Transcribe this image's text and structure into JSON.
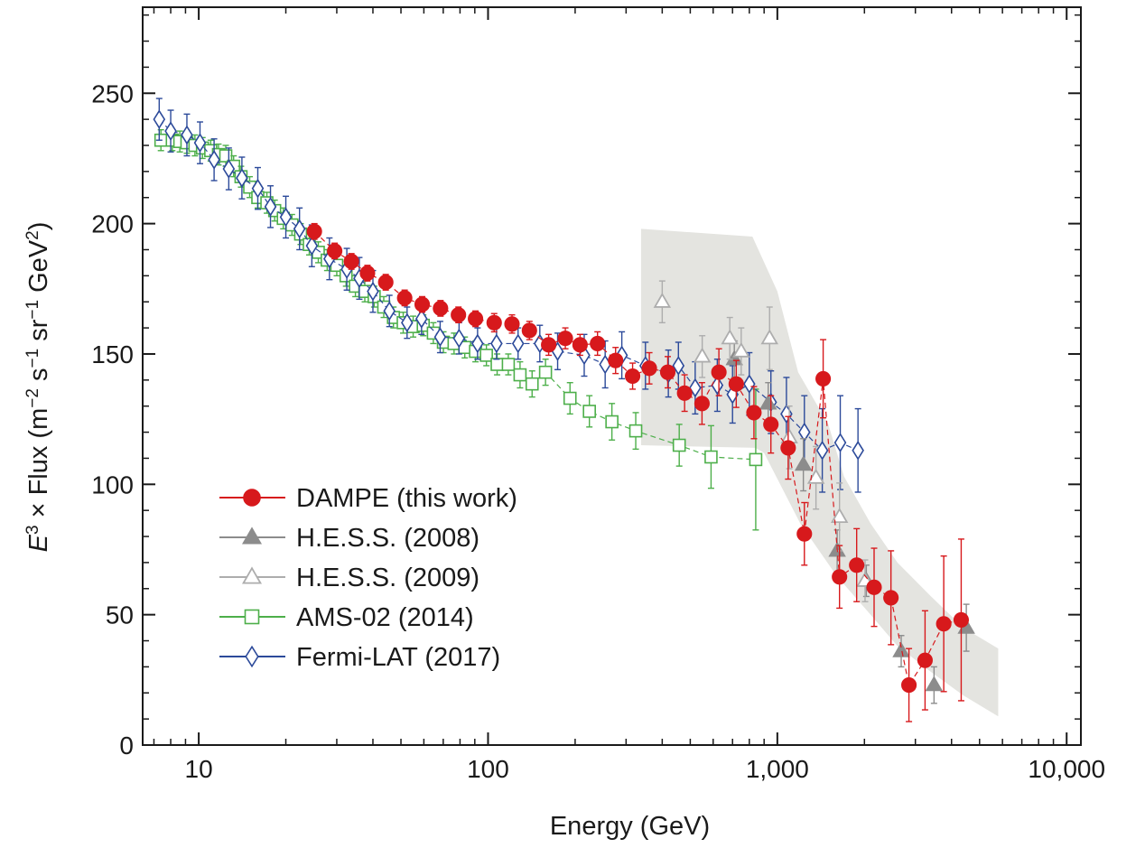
{
  "chart_data": {
    "type": "scatter",
    "xlabel": "Energy (GeV)",
    "ylabel": {
      "base": "E",
      "sup_base": "3",
      "pre": " × Flux (m",
      "sup1": "−2",
      "mid1": " s",
      "sup2": "−1",
      "mid2": " sr",
      "sup3": "−1",
      "mid3": " GeV",
      "sup4": "2",
      "post": ")"
    },
    "x_scale": "log",
    "xlim": [
      6.4,
      11200
    ],
    "ylim": [
      0,
      283
    ],
    "x_ticks": [
      {
        "value": 10,
        "label": "10"
      },
      {
        "value": 100,
        "label": "100"
      },
      {
        "value": 1000,
        "label": "1,000"
      },
      {
        "value": 10000,
        "label": "10,000"
      }
    ],
    "y_ticks": [
      {
        "value": 0,
        "label": "0"
      },
      {
        "value": 50,
        "label": "50"
      },
      {
        "value": 100,
        "label": "100"
      },
      {
        "value": 150,
        "label": "150"
      },
      {
        "value": 200,
        "label": "200"
      },
      {
        "value": 250,
        "label": "250"
      }
    ],
    "legend_position": "bottom-left",
    "band": {
      "color": "#e4e4e0",
      "upper": [
        [
          338,
          198
        ],
        [
          820,
          195
        ],
        [
          1000,
          174
        ],
        [
          1180,
          143
        ],
        [
          1500,
          123
        ],
        [
          1700,
          103
        ],
        [
          2100,
          85
        ],
        [
          2600,
          70
        ],
        [
          3400,
          57
        ],
        [
          4400,
          45
        ],
        [
          5800,
          37
        ]
      ],
      "lower": [
        [
          338,
          115
        ],
        [
          840,
          114
        ],
        [
          900,
          112
        ],
        [
          1200,
          85
        ],
        [
          1600,
          65
        ],
        [
          2100,
          50
        ],
        [
          2600,
          38
        ],
        [
          3400,
          28
        ],
        [
          4400,
          19
        ],
        [
          5800,
          11
        ]
      ]
    },
    "series": [
      {
        "name": "DAMPE (this work)",
        "color": "#d7191c",
        "marker": "circle",
        "line": true,
        "points": [
          [
            25.1,
            197,
            3
          ],
          [
            29.5,
            189.5,
            3
          ],
          [
            33.7,
            185.5,
            3
          ],
          [
            38.3,
            181,
            3
          ],
          [
            44.3,
            177.5,
            3
          ],
          [
            51.5,
            171.5,
            3
          ],
          [
            59.2,
            169,
            3
          ],
          [
            68.5,
            167.5,
            3
          ],
          [
            79,
            165,
            3
          ],
          [
            90.5,
            163.5,
            3
          ],
          [
            105,
            162,
            3.5
          ],
          [
            121,
            161.5,
            3.5
          ],
          [
            139,
            159,
            3.5
          ],
          [
            162,
            153.5,
            4
          ],
          [
            185,
            156,
            4
          ],
          [
            208,
            153.5,
            4
          ],
          [
            239,
            154,
            4.5
          ],
          [
            276,
            147.5,
            5
          ],
          [
            316,
            141.5,
            5
          ],
          [
            361,
            144.5,
            6
          ],
          [
            418,
            143,
            6
          ],
          [
            478,
            135,
            7
          ],
          [
            549,
            131,
            8
          ],
          [
            628,
            143,
            9
          ],
          [
            721,
            138.5,
            9
          ],
          [
            830,
            127.5,
            10
          ],
          [
            950,
            123,
            11
          ],
          [
            1090,
            114,
            12
          ],
          [
            1240,
            81,
            12
          ],
          [
            1440,
            140.5,
            15
          ],
          [
            1640,
            64.5,
            12
          ],
          [
            1880,
            69,
            14
          ],
          [
            2160,
            60.5,
            15
          ],
          [
            2470,
            56.5,
            18
          ],
          [
            2850,
            23,
            14
          ],
          [
            3240,
            32.5,
            19
          ],
          [
            3760,
            46.5,
            26
          ],
          [
            4320,
            48,
            31
          ]
        ]
      },
      {
        "name": "H.E.S.S. (2008)",
        "color": "#8c8c8c",
        "marker": "triangle-filled",
        "line": false,
        "points": [
          [
            710,
            148,
            7
          ],
          [
            930,
            131,
            8
          ],
          [
            1230,
            107.5,
            10
          ],
          [
            1610,
            74.5,
            8
          ],
          [
            2030,
            63,
            6
          ],
          [
            2680,
            36,
            6
          ],
          [
            3480,
            23,
            7
          ],
          [
            4500,
            45,
            9
          ]
        ]
      },
      {
        "name": "H.E.S.S. (2009)",
        "color": "#adadad",
        "marker": "triangle-open",
        "line": false,
        "points": [
          [
            400,
            170,
            8
          ],
          [
            550,
            149,
            8
          ],
          [
            685,
            156,
            8
          ],
          [
            750,
            151,
            9
          ],
          [
            940,
            156,
            12
          ],
          [
            1100,
            118,
            12
          ],
          [
            1360,
            102.5,
            12
          ],
          [
            1640,
            87.5,
            13
          ],
          [
            2010,
            63,
            8
          ]
        ]
      },
      {
        "name": "AMS-02 (2014)",
        "color": "#4daf4a",
        "marker": "square-open",
        "line": true,
        "points": [
          [
            7.4,
            232,
            4
          ],
          [
            8.1,
            232,
            4
          ],
          [
            8.6,
            231.5,
            4
          ],
          [
            9.1,
            231,
            4
          ],
          [
            9.7,
            230,
            4
          ],
          [
            10.3,
            229,
            4
          ],
          [
            11,
            228,
            4
          ],
          [
            11.7,
            226.5,
            4
          ],
          [
            12.4,
            226,
            4
          ],
          [
            13.2,
            222,
            4
          ],
          [
            14,
            218,
            4
          ],
          [
            15,
            214,
            4
          ],
          [
            16,
            210,
            4
          ],
          [
            17.2,
            208,
            4
          ],
          [
            18.3,
            205,
            4
          ],
          [
            19.6,
            202,
            4
          ],
          [
            21,
            199.5,
            4
          ],
          [
            22.5,
            196,
            4
          ],
          [
            24.1,
            192,
            4
          ],
          [
            25.9,
            189,
            4
          ],
          [
            27.8,
            186,
            4
          ],
          [
            30,
            184,
            4
          ],
          [
            32.3,
            180,
            4
          ],
          [
            34.8,
            176,
            4
          ],
          [
            37.5,
            174,
            4
          ],
          [
            40.4,
            172,
            4
          ],
          [
            43.6,
            168,
            4
          ],
          [
            47.1,
            164,
            4
          ],
          [
            50.9,
            162,
            4
          ],
          [
            55.1,
            160.5,
            4
          ],
          [
            59.7,
            161,
            4
          ],
          [
            64.7,
            158,
            4
          ],
          [
            70.1,
            154.5,
            4
          ],
          [
            76.3,
            154,
            4
          ],
          [
            83.1,
            152.5,
            4
          ],
          [
            90.5,
            151,
            4
          ],
          [
            98.7,
            149.5,
            4
          ],
          [
            107.5,
            146,
            4
          ],
          [
            117.5,
            146,
            4
          ],
          [
            129,
            142,
            5
          ],
          [
            142,
            138.5,
            5
          ],
          [
            158,
            143,
            5
          ],
          [
            192,
            133,
            6
          ],
          [
            224,
            128,
            6
          ],
          [
            268,
            124,
            7
          ],
          [
            324,
            120.5,
            7
          ],
          [
            458,
            115,
            8
          ],
          [
            590,
            110.5,
            12
          ],
          [
            842,
            109.5,
            27
          ]
        ]
      },
      {
        "name": "Fermi-LAT (2017)",
        "color": "#2c4a9a",
        "marker": "diamond-open",
        "line": true,
        "points": [
          [
            7.3,
            240,
            8
          ],
          [
            8,
            235.5,
            8
          ],
          [
            9.1,
            234,
            8
          ],
          [
            10.1,
            231,
            8
          ],
          [
            11.3,
            224.5,
            8
          ],
          [
            12.7,
            221,
            8
          ],
          [
            14.1,
            217.5,
            8
          ],
          [
            16,
            213.5,
            8
          ],
          [
            17.7,
            206.5,
            8
          ],
          [
            20,
            202.5,
            8
          ],
          [
            22.3,
            198,
            8
          ],
          [
            24.6,
            191.5,
            8
          ],
          [
            28.3,
            186.5,
            8
          ],
          [
            32.5,
            182.5,
            8
          ],
          [
            35.9,
            179,
            8
          ],
          [
            40,
            174,
            8
          ],
          [
            45.6,
            166.5,
            6
          ],
          [
            52.5,
            162,
            6
          ],
          [
            58.9,
            163.5,
            6
          ],
          [
            68.3,
            156.5,
            6
          ],
          [
            79.4,
            156,
            6
          ],
          [
            92,
            154,
            6
          ],
          [
            107,
            154,
            6
          ],
          [
            127,
            154,
            6
          ],
          [
            151,
            154,
            7
          ],
          [
            174,
            151,
            7
          ],
          [
            215,
            149.5,
            8
          ],
          [
            254,
            146,
            9
          ],
          [
            290,
            149.5,
            9
          ],
          [
            350,
            145.5,
            9
          ],
          [
            420,
            142.5,
            9
          ],
          [
            455,
            145.5,
            9
          ],
          [
            520,
            137,
            10
          ],
          [
            620,
            138,
            10
          ],
          [
            700,
            134.5,
            11
          ],
          [
            800,
            138.5,
            12
          ],
          [
            950,
            131.5,
            12
          ],
          [
            1075,
            127,
            14
          ],
          [
            1240,
            120,
            14
          ],
          [
            1430,
            113,
            16
          ],
          [
            1650,
            116,
            18
          ],
          [
            1900,
            113,
            16
          ]
        ]
      }
    ]
  }
}
